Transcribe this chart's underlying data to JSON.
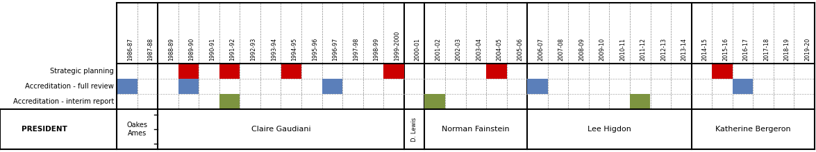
{
  "years": [
    "1986-87",
    "1987-88",
    "1988-89",
    "1989-90",
    "1990-91",
    "1991-92",
    "1992-93",
    "1993-94",
    "1994-95",
    "1995-96",
    "1996-97",
    "1997-98",
    "1998-99",
    "1999-2000",
    "2000-01",
    "2001-02",
    "2002-03",
    "2003-04",
    "2004-05",
    "2005-06",
    "2006-07",
    "2007-08",
    "2008-09",
    "2009-10",
    "2010-11",
    "2011-12",
    "2012-13",
    "2013-14",
    "2014-15",
    "2015-16",
    "2016-17",
    "2017-18",
    "2018-19",
    "2019-20"
  ],
  "rows": [
    "Strategic planning",
    "Accreditation - full review",
    "Accreditation - interim report"
  ],
  "row_colors": [
    "#cc0000",
    "#5b7fba",
    "#7d9440"
  ],
  "strategic_planning_years": [
    "1989-90",
    "1991-92",
    "1994-95",
    "1999-2000",
    "2004-05",
    "2015-16"
  ],
  "full_review_years": [
    "1986-87",
    "1989-90",
    "1996-97",
    "2006-07",
    "2016-17"
  ],
  "interim_report_years": [
    "1991-92",
    "2001-02",
    "2011-12"
  ],
  "presidents": [
    {
      "name": "Oakes\nAmes",
      "years": [
        "1986-87",
        "1987-88"
      ],
      "vertical": false
    },
    {
      "name": "Claire Gaudiani",
      "years": [
        "1988-89",
        "1989-90",
        "1990-91",
        "1991-92",
        "1992-93",
        "1993-94",
        "1994-95",
        "1995-96",
        "1996-97",
        "1997-98",
        "1998-99",
        "1999-2000"
      ],
      "vertical": false
    },
    {
      "name": "D. Lewis",
      "years": [
        "2000-01"
      ],
      "vertical": true
    },
    {
      "name": "Norman Fainstein",
      "years": [
        "2001-02",
        "2002-03",
        "2003-04",
        "2004-05",
        "2005-06"
      ],
      "vertical": false
    },
    {
      "name": "Lee Higdon",
      "years": [
        "2006-07",
        "2007-08",
        "2008-09",
        "2009-10",
        "2010-11",
        "2011-12",
        "2012-13",
        "2013-14"
      ],
      "vertical": false
    },
    {
      "name": "Katherine Bergeron",
      "years": [
        "2014-15",
        "2015-16",
        "2016-17",
        "2017-18",
        "2018-19",
        "2019-20"
      ],
      "vertical": false
    }
  ],
  "era_dividers": [
    2,
    14,
    15,
    20,
    28
  ],
  "president_label": "PRESIDENT",
  "background_color": "#ffffff",
  "cell_padding": 0.05
}
